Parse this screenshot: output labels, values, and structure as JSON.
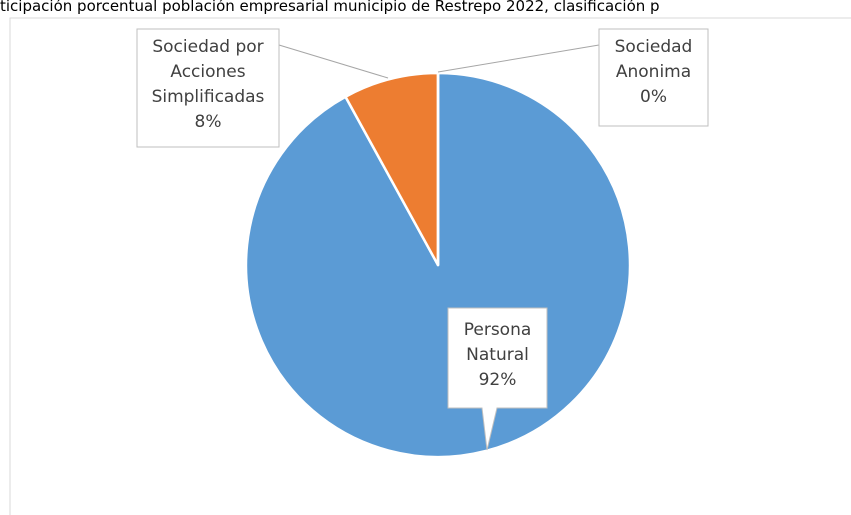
{
  "chart_data": {
    "type": "pie",
    "title": "ticipación porcentual población empresarial municipio de Restrepo 2022, clasificación p",
    "categories": [
      "Persona Natural",
      "Sociedad por Acciones Simplificadas",
      "Sociedad Anonima"
    ],
    "values": [
      92,
      8,
      0
    ],
    "value_labels": [
      "92%",
      "8%",
      "0%"
    ],
    "colors": [
      "#5b9bd5",
      "#ed7d31",
      "#a5a5a5"
    ]
  }
}
